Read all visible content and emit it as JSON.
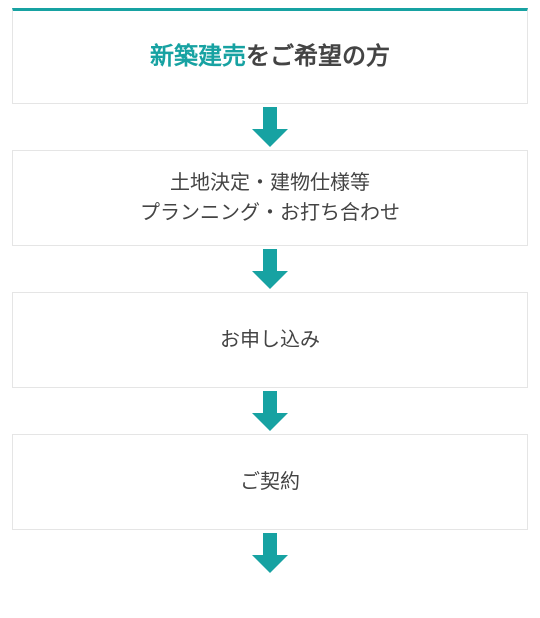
{
  "colors": {
    "accent": "#17a2a2",
    "box_border": "#e5e5e5",
    "text_dark": "#444444",
    "background": "#ffffff"
  },
  "typography": {
    "title_fontsize": 24,
    "body_fontsize": 20,
    "title_weight": 700,
    "body_weight": 500
  },
  "layout": {
    "box_height_first": 96,
    "box_height_rest": 96,
    "arrow_gap_height": 46,
    "arrow_shaft_width": 14,
    "arrow_head_width": 36,
    "arrow_total_height": 40,
    "arrow_head_height": 18
  },
  "steps": [
    {
      "is_title": true,
      "lines": [
        {
          "segments": [
            {
              "text": "新築建売",
              "accent": true
            },
            {
              "text": "をご希望の方",
              "accent": false
            }
          ]
        }
      ]
    },
    {
      "is_title": false,
      "lines": [
        {
          "text": "土地決定・建物仕様等"
        },
        {
          "text": "プランニング・お打ち合わせ"
        }
      ]
    },
    {
      "is_title": false,
      "lines": [
        {
          "text": "お申し込み"
        }
      ]
    },
    {
      "is_title": false,
      "lines": [
        {
          "text": "ご契約"
        }
      ]
    }
  ],
  "trailing_arrow": true
}
